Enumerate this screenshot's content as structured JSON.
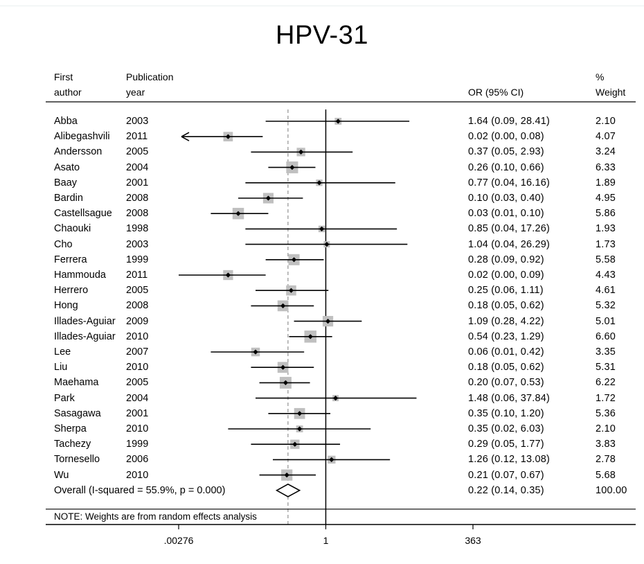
{
  "chart_data": {
    "type": "forest",
    "title": "HPV-31",
    "columns": {
      "first_author": [
        "First",
        "author"
      ],
      "publication_year": [
        "Publication",
        "year"
      ],
      "or_ci": "OR (95% CI)",
      "weight": [
        "%",
        "Weight"
      ]
    },
    "studies": [
      {
        "author": "Abba",
        "year": "2003",
        "or": 1.64,
        "lo": 0.09,
        "hi": 28.41,
        "or_text": "1.64 (0.09, 28.41)",
        "weight": 2.1,
        "weight_text": "2.10"
      },
      {
        "author": "Alibegashvili",
        "year": "2011",
        "or": 0.02,
        "lo": 0.0,
        "hi": 0.08,
        "or_text": "0.02 (0.00, 0.08)",
        "weight": 4.07,
        "weight_text": "4.07",
        "truncated_lower": true
      },
      {
        "author": "Andersson",
        "year": "2005",
        "or": 0.37,
        "lo": 0.05,
        "hi": 2.93,
        "or_text": "0.37 (0.05, 2.93)",
        "weight": 3.24,
        "weight_text": "3.24"
      },
      {
        "author": "Asato",
        "year": "2004",
        "or": 0.26,
        "lo": 0.1,
        "hi": 0.66,
        "or_text": "0.26 (0.10, 0.66)",
        "weight": 6.33,
        "weight_text": "6.33"
      },
      {
        "author": "Baay",
        "year": "2001",
        "or": 0.77,
        "lo": 0.04,
        "hi": 16.16,
        "or_text": "0.77 (0.04, 16.16)",
        "weight": 1.89,
        "weight_text": "1.89"
      },
      {
        "author": "Bardin",
        "year": "2008",
        "or": 0.1,
        "lo": 0.03,
        "hi": 0.4,
        "or_text": "0.10 (0.03, 0.40)",
        "weight": 4.95,
        "weight_text": "4.95"
      },
      {
        "author": "Castellsague",
        "year": "2008",
        "or": 0.03,
        "lo": 0.01,
        "hi": 0.1,
        "or_text": "0.03 (0.01, 0.10)",
        "weight": 5.86,
        "weight_text": "5.86"
      },
      {
        "author": "Chaouki",
        "year": "1998",
        "or": 0.85,
        "lo": 0.04,
        "hi": 17.26,
        "or_text": "0.85 (0.04, 17.26)",
        "weight": 1.93,
        "weight_text": "1.93"
      },
      {
        "author": "Cho",
        "year": "2003",
        "or": 1.04,
        "lo": 0.04,
        "hi": 26.29,
        "or_text": "1.04 (0.04, 26.29)",
        "weight": 1.73,
        "weight_text": "1.73"
      },
      {
        "author": "Ferrera",
        "year": "1999",
        "or": 0.28,
        "lo": 0.09,
        "hi": 0.92,
        "or_text": "0.28 (0.09, 0.92)",
        "weight": 5.58,
        "weight_text": "5.58"
      },
      {
        "author": "Hammouda",
        "year": "2011",
        "or": 0.02,
        "lo": 0.0,
        "hi": 0.09,
        "or_text": "0.02 (0.00, 0.09)",
        "weight": 4.43,
        "weight_text": "4.43"
      },
      {
        "author": "Herrero",
        "year": "2005",
        "or": 0.25,
        "lo": 0.06,
        "hi": 1.11,
        "or_text": "0.25 (0.06, 1.11)",
        "weight": 4.61,
        "weight_text": "4.61"
      },
      {
        "author": "Hong",
        "year": "2008",
        "or": 0.18,
        "lo": 0.05,
        "hi": 0.62,
        "or_text": "0.18 (0.05, 0.62)",
        "weight": 5.32,
        "weight_text": "5.32"
      },
      {
        "author": "Illades-Aguiar",
        "year": "2009",
        "or": 1.09,
        "lo": 0.28,
        "hi": 4.22,
        "or_text": "1.09 (0.28, 4.22)",
        "weight": 5.01,
        "weight_text": "5.01"
      },
      {
        "author": "Illades-Aguiar",
        "year": "2010",
        "or": 0.54,
        "lo": 0.23,
        "hi": 1.29,
        "or_text": "0.54 (0.23, 1.29)",
        "weight": 6.6,
        "weight_text": "6.60"
      },
      {
        "author": "Lee",
        "year": "2007",
        "or": 0.06,
        "lo": 0.01,
        "hi": 0.42,
        "or_text": "0.06 (0.01, 0.42)",
        "weight": 3.35,
        "weight_text": "3.35"
      },
      {
        "author": "Liu",
        "year": "2010",
        "or": 0.18,
        "lo": 0.05,
        "hi": 0.62,
        "or_text": "0.18 (0.05, 0.62)",
        "weight": 5.31,
        "weight_text": "5.31"
      },
      {
        "author": "Maehama",
        "year": "2005",
        "or": 0.2,
        "lo": 0.07,
        "hi": 0.53,
        "or_text": "0.20 (0.07, 0.53)",
        "weight": 6.22,
        "weight_text": "6.22"
      },
      {
        "author": "Park",
        "year": "2004",
        "or": 1.48,
        "lo": 0.06,
        "hi": 37.84,
        "or_text": "1.48 (0.06, 37.84)",
        "weight": 1.72,
        "weight_text": "1.72"
      },
      {
        "author": "Sasagawa",
        "year": "2001",
        "or": 0.35,
        "lo": 0.1,
        "hi": 1.2,
        "or_text": "0.35 (0.10, 1.20)",
        "weight": 5.36,
        "weight_text": "5.36"
      },
      {
        "author": "Sherpa",
        "year": "2010",
        "or": 0.35,
        "lo": 0.02,
        "hi": 6.03,
        "or_text": "0.35 (0.02, 6.03)",
        "weight": 2.1,
        "weight_text": "2.10"
      },
      {
        "author": "Tachezy",
        "year": "1999",
        "or": 0.29,
        "lo": 0.05,
        "hi": 1.77,
        "or_text": "0.29 (0.05, 1.77)",
        "weight": 3.83,
        "weight_text": "3.83"
      },
      {
        "author": "Tornesello",
        "year": "2006",
        "or": 1.26,
        "lo": 0.12,
        "hi": 13.08,
        "or_text": "1.26 (0.12, 13.08)",
        "weight": 2.78,
        "weight_text": "2.78"
      },
      {
        "author": "Wu",
        "year": "2010",
        "or": 0.21,
        "lo": 0.07,
        "hi": 0.67,
        "or_text": "0.21 (0.07, 0.67)",
        "weight": 5.68,
        "weight_text": "5.68"
      }
    ],
    "overall": {
      "label": "Overall  (I-squared = 55.9%, p = 0.000)",
      "or": 0.22,
      "lo": 0.14,
      "hi": 0.35,
      "or_text": "0.22 (0.14, 0.35)",
      "weight_text": "100.00"
    },
    "note": "NOTE: Weights are from random effects analysis",
    "x_axis": {
      "scale": "log",
      "range": [
        0.00276,
        363
      ],
      "ticks": [
        {
          "value": 0.00276,
          "label": ".00276"
        },
        {
          "value": 1,
          "label": "1"
        },
        {
          "value": 363,
          "label": "363"
        }
      ]
    },
    "reference_line": 1,
    "colors": {
      "marker_box": "#c0c0c0",
      "lines": "#000000",
      "dashed_line": "#a0a0a0"
    }
  }
}
